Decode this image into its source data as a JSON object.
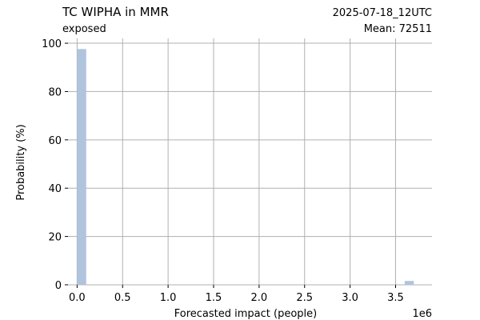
{
  "header": {
    "title": "TC WIPHA in MMR",
    "subtitle": "exposed",
    "date": "2025-07-18_12UTC",
    "mean_label": "Mean: 72511"
  },
  "chart_data": {
    "type": "bar",
    "title": "TC WIPHA in MMR",
    "xlabel": "Forecasted impact (people)",
    "ylabel": "Probability (%)",
    "x_offset_label": "1e6",
    "x_scale": 1000000,
    "xlim": [
      -0.1,
      3.9
    ],
    "ylim": [
      0,
      102
    ],
    "grid": true,
    "bar_color": "#b0c4de",
    "date_color": "#ff0000",
    "bin_width": 0.1,
    "bins": [
      {
        "x": 0.0,
        "value": 97.6
      },
      {
        "x": 3.6,
        "value": 1.6
      }
    ],
    "xticks": [
      0.0,
      0.5,
      1.0,
      1.5,
      2.0,
      2.5,
      3.0,
      3.5
    ],
    "xtick_labels": [
      "0.0",
      "0.5",
      "1.0",
      "1.5",
      "2.0",
      "2.5",
      "3.0",
      "3.5"
    ],
    "yticks": [
      0,
      20,
      40,
      60,
      80,
      100
    ],
    "ytick_labels": [
      "0",
      "20",
      "40",
      "60",
      "80",
      "100"
    ]
  }
}
